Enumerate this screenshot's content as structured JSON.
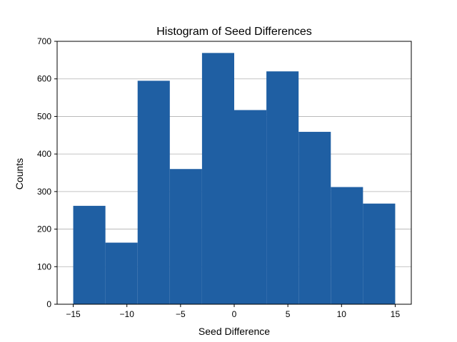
{
  "chart_data": {
    "type": "bar",
    "title": "Histogram of Seed Differences",
    "xlabel": "Seed Difference",
    "ylabel": "Counts",
    "xlim": [
      -16.5,
      16.5
    ],
    "ylim": [
      0,
      700
    ],
    "x_ticks": [
      -15,
      -10,
      -5,
      0,
      5,
      10,
      15
    ],
    "x_tick_labels": [
      "−15",
      "−10",
      "−5",
      "0",
      "5",
      "10",
      "15"
    ],
    "y_ticks": [
      0,
      100,
      200,
      300,
      400,
      500,
      600,
      700
    ],
    "y_tick_labels": [
      "0",
      "100",
      "200",
      "300",
      "400",
      "500",
      "600",
      "700"
    ],
    "grid": "y",
    "bar_color": "#1f5fa3",
    "bins": [
      {
        "start": -15,
        "end": -12,
        "count": 262
      },
      {
        "start": -12,
        "end": -9,
        "count": 164
      },
      {
        "start": -9,
        "end": -6,
        "count": 595
      },
      {
        "start": -6,
        "end": -3,
        "count": 360
      },
      {
        "start": -3,
        "end": 0,
        "count": 669
      },
      {
        "start": 0,
        "end": 3,
        "count": 517
      },
      {
        "start": 3,
        "end": 6,
        "count": 620
      },
      {
        "start": 6,
        "end": 9,
        "count": 459
      },
      {
        "start": 9,
        "end": 12,
        "count": 312
      },
      {
        "start": 12,
        "end": 15,
        "count": 268
      }
    ]
  }
}
